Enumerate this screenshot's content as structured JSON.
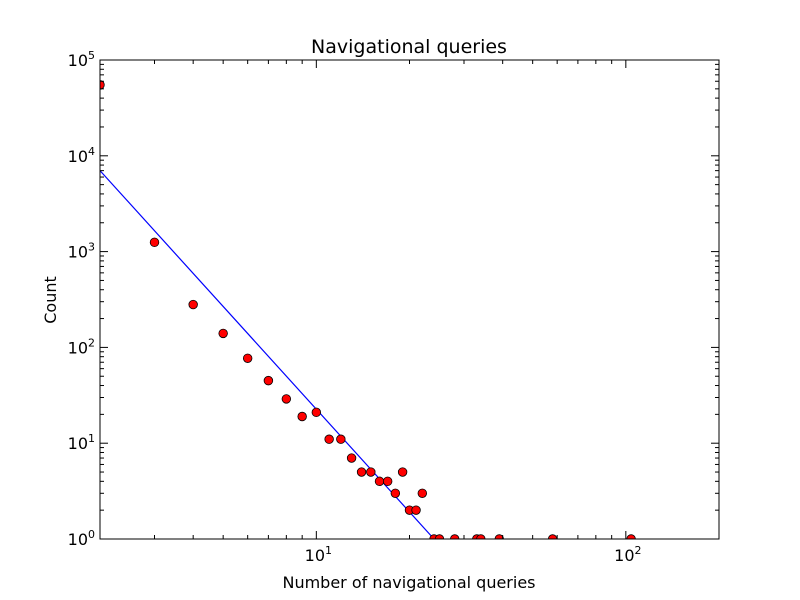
{
  "chart_data": {
    "type": "scatter",
    "title": "Navigational queries",
    "xlabel": "Number of navigational queries",
    "ylabel": "Count",
    "xscale": "log",
    "yscale": "log",
    "xlim": [
      2,
      200
    ],
    "ylim": [
      1,
      100000
    ],
    "xticks": [
      {
        "base": "10",
        "exp": "1",
        "value": 10
      },
      {
        "base": "10",
        "exp": "2",
        "value": 100
      }
    ],
    "yticks": [
      {
        "base": "10",
        "exp": "0",
        "value": 1
      },
      {
        "base": "10",
        "exp": "1",
        "value": 10
      },
      {
        "base": "10",
        "exp": "2",
        "value": 100
      },
      {
        "base": "10",
        "exp": "3",
        "value": 1000
      },
      {
        "base": "10",
        "exp": "4",
        "value": 10000
      },
      {
        "base": "10",
        "exp": "5",
        "value": 100000
      }
    ],
    "grid": false,
    "series": [
      {
        "marker_color": "#ff0000",
        "points": [
          [
            2,
            55000
          ],
          [
            3,
            1250
          ],
          [
            4,
            280
          ],
          [
            5,
            140
          ],
          [
            6,
            77
          ],
          [
            7,
            45
          ],
          [
            8,
            29
          ],
          [
            9,
            19
          ],
          [
            10,
            21
          ],
          [
            11,
            11
          ],
          [
            12,
            11
          ],
          [
            13,
            7
          ],
          [
            14,
            5
          ],
          [
            15,
            5
          ],
          [
            16,
            4
          ],
          [
            17,
            4
          ],
          [
            18,
            3
          ],
          [
            19,
            5
          ],
          [
            20,
            2
          ],
          [
            21,
            2
          ],
          [
            22,
            3
          ],
          [
            24,
            1
          ],
          [
            25,
            1
          ],
          [
            28,
            1
          ],
          [
            33,
            1
          ],
          [
            34,
            1
          ],
          [
            39,
            1
          ],
          [
            58,
            1
          ],
          [
            104,
            1
          ]
        ]
      }
    ],
    "fit_line": {
      "color": "#0000ff",
      "points": [
        [
          2,
          7000
        ],
        [
          24,
          1
        ]
      ]
    }
  }
}
